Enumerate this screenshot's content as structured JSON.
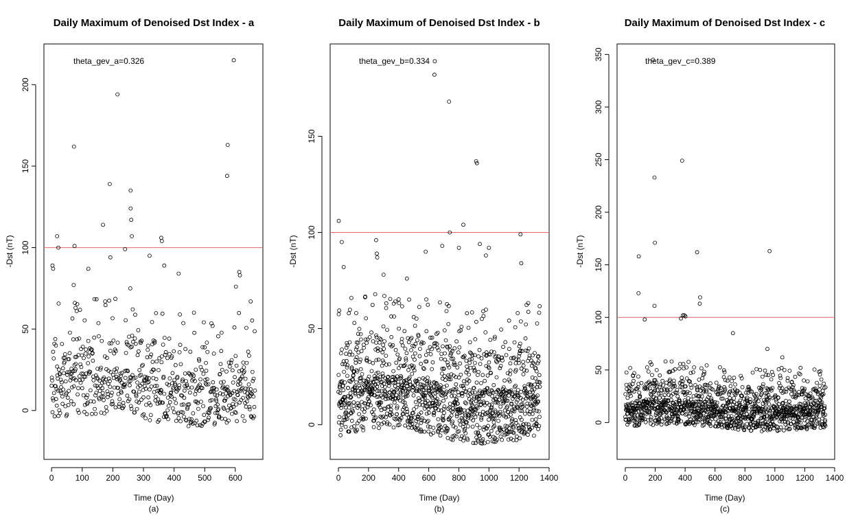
{
  "colors": {
    "threshold_line": "#e06666",
    "points": "#000000",
    "background": "#ffffff"
  },
  "chart_data": [
    {
      "type": "scatter",
      "title": "Daily Maximum of Denoised Dst Index - a",
      "xlabel": "Time (Day)",
      "panel_label": "(a)",
      "ylabel": "-Dst (nT)",
      "annotation": "theta_gev_a=0.326",
      "xlim": [
        -25,
        690
      ],
      "ylim": [
        -30,
        225
      ],
      "xticks": [
        0,
        100,
        200,
        300,
        400,
        500,
        600
      ],
      "xtick_labels": [
        "0",
        "100",
        "200",
        "300",
        "400",
        "500",
        "600"
      ],
      "yticks": [
        0,
        50,
        100,
        150,
        200
      ],
      "ytick_labels": [
        "0",
        "50",
        "100",
        "150",
        "200"
      ],
      "threshold": 100,
      "n_days": 665,
      "outliers": [
        {
          "x": 3,
          "y": 89
        },
        {
          "x": 5,
          "y": 87
        },
        {
          "x": 18,
          "y": 107
        },
        {
          "x": 22,
          "y": 100
        },
        {
          "x": 73,
          "y": 162
        },
        {
          "x": 75,
          "y": 101
        },
        {
          "x": 72,
          "y": 77
        },
        {
          "x": 76,
          "y": 66
        },
        {
          "x": 78,
          "y": 63
        },
        {
          "x": 120,
          "y": 87
        },
        {
          "x": 168,
          "y": 114
        },
        {
          "x": 190,
          "y": 139
        },
        {
          "x": 192,
          "y": 94
        },
        {
          "x": 215,
          "y": 194
        },
        {
          "x": 240,
          "y": 99
        },
        {
          "x": 258,
          "y": 135
        },
        {
          "x": 258,
          "y": 124
        },
        {
          "x": 260,
          "y": 117
        },
        {
          "x": 262,
          "y": 107
        },
        {
          "x": 257,
          "y": 75
        },
        {
          "x": 320,
          "y": 95
        },
        {
          "x": 358,
          "y": 106
        },
        {
          "x": 360,
          "y": 104
        },
        {
          "x": 368,
          "y": 89
        },
        {
          "x": 415,
          "y": 84
        },
        {
          "x": 575,
          "y": 163
        },
        {
          "x": 573,
          "y": 144
        },
        {
          "x": 595,
          "y": 215
        },
        {
          "x": 602,
          "y": 76
        },
        {
          "x": 613,
          "y": 85
        },
        {
          "x": 615,
          "y": 83
        },
        {
          "x": 650,
          "y": 67
        }
      ]
    },
    {
      "type": "scatter",
      "title": "Daily Maximum of Denoised Dst Index - b",
      "xlabel": "Time (Day)",
      "panel_label": "(b)",
      "ylabel": "-Dst (nT)",
      "annotation": "theta_gev_b=0.334",
      "xlim": [
        -55,
        1400
      ],
      "ylim": [
        -18,
        198
      ],
      "xticks": [
        0,
        200,
        400,
        600,
        800,
        1000,
        1200,
        1400
      ],
      "xtick_labels": [
        "0",
        "200",
        "400",
        "600",
        "800",
        "1000",
        "1200",
        "1400"
      ],
      "yticks": [
        0,
        50,
        100,
        150
      ],
      "ytick_labels": [
        "0",
        "50",
        "100",
        "150"
      ],
      "threshold": 100,
      "n_days": 1340,
      "outliers": [
        {
          "x": 2,
          "y": 106
        },
        {
          "x": 22,
          "y": 95
        },
        {
          "x": 35,
          "y": 82
        },
        {
          "x": 250,
          "y": 96
        },
        {
          "x": 255,
          "y": 89
        },
        {
          "x": 258,
          "y": 87
        },
        {
          "x": 640,
          "y": 189
        },
        {
          "x": 638,
          "y": 182
        },
        {
          "x": 735,
          "y": 168
        },
        {
          "x": 740,
          "y": 100
        },
        {
          "x": 830,
          "y": 104
        },
        {
          "x": 915,
          "y": 137
        },
        {
          "x": 920,
          "y": 136
        },
        {
          "x": 940,
          "y": 94
        },
        {
          "x": 1000,
          "y": 92
        },
        {
          "x": 1210,
          "y": 99
        },
        {
          "x": 1215,
          "y": 84
        },
        {
          "x": 690,
          "y": 93
        },
        {
          "x": 580,
          "y": 90
        },
        {
          "x": 800,
          "y": 92
        },
        {
          "x": 980,
          "y": 88
        },
        {
          "x": 300,
          "y": 78
        },
        {
          "x": 455,
          "y": 76
        }
      ]
    },
    {
      "type": "scatter",
      "title": "Daily Maximum of Denoised Dst Index - c",
      "xlabel": "Time (Day)",
      "panel_label": "(c)",
      "ylabel": "-Dst (nT)",
      "annotation": "theta_gev_c=0.389",
      "xlim": [
        -55,
        1400
      ],
      "ylim": [
        -35,
        360
      ],
      "xticks": [
        0,
        200,
        400,
        600,
        800,
        1000,
        1200,
        1400
      ],
      "xtick_labels": [
        "0",
        "200",
        "400",
        "600",
        "800",
        "1000",
        "1200",
        "1400"
      ],
      "yticks": [
        0,
        50,
        100,
        150,
        200,
        250,
        300,
        350
      ],
      "ytick_labels": [
        "0",
        "50",
        "100",
        "150",
        "200",
        "250",
        "300",
        "350"
      ],
      "threshold": 100,
      "n_days": 1340,
      "outliers": [
        {
          "x": 185,
          "y": 345
        },
        {
          "x": 380,
          "y": 249
        },
        {
          "x": 195,
          "y": 233
        },
        {
          "x": 198,
          "y": 171
        },
        {
          "x": 90,
          "y": 158
        },
        {
          "x": 88,
          "y": 123
        },
        {
          "x": 480,
          "y": 162
        },
        {
          "x": 965,
          "y": 163
        },
        {
          "x": 500,
          "y": 119
        },
        {
          "x": 498,
          "y": 113
        },
        {
          "x": 385,
          "y": 102
        },
        {
          "x": 395,
          "y": 102
        },
        {
          "x": 402,
          "y": 101
        },
        {
          "x": 372,
          "y": 99
        },
        {
          "x": 195,
          "y": 111
        },
        {
          "x": 130,
          "y": 98
        },
        {
          "x": 950,
          "y": 70
        },
        {
          "x": 720,
          "y": 85
        },
        {
          "x": 1050,
          "y": 62
        }
      ]
    }
  ]
}
